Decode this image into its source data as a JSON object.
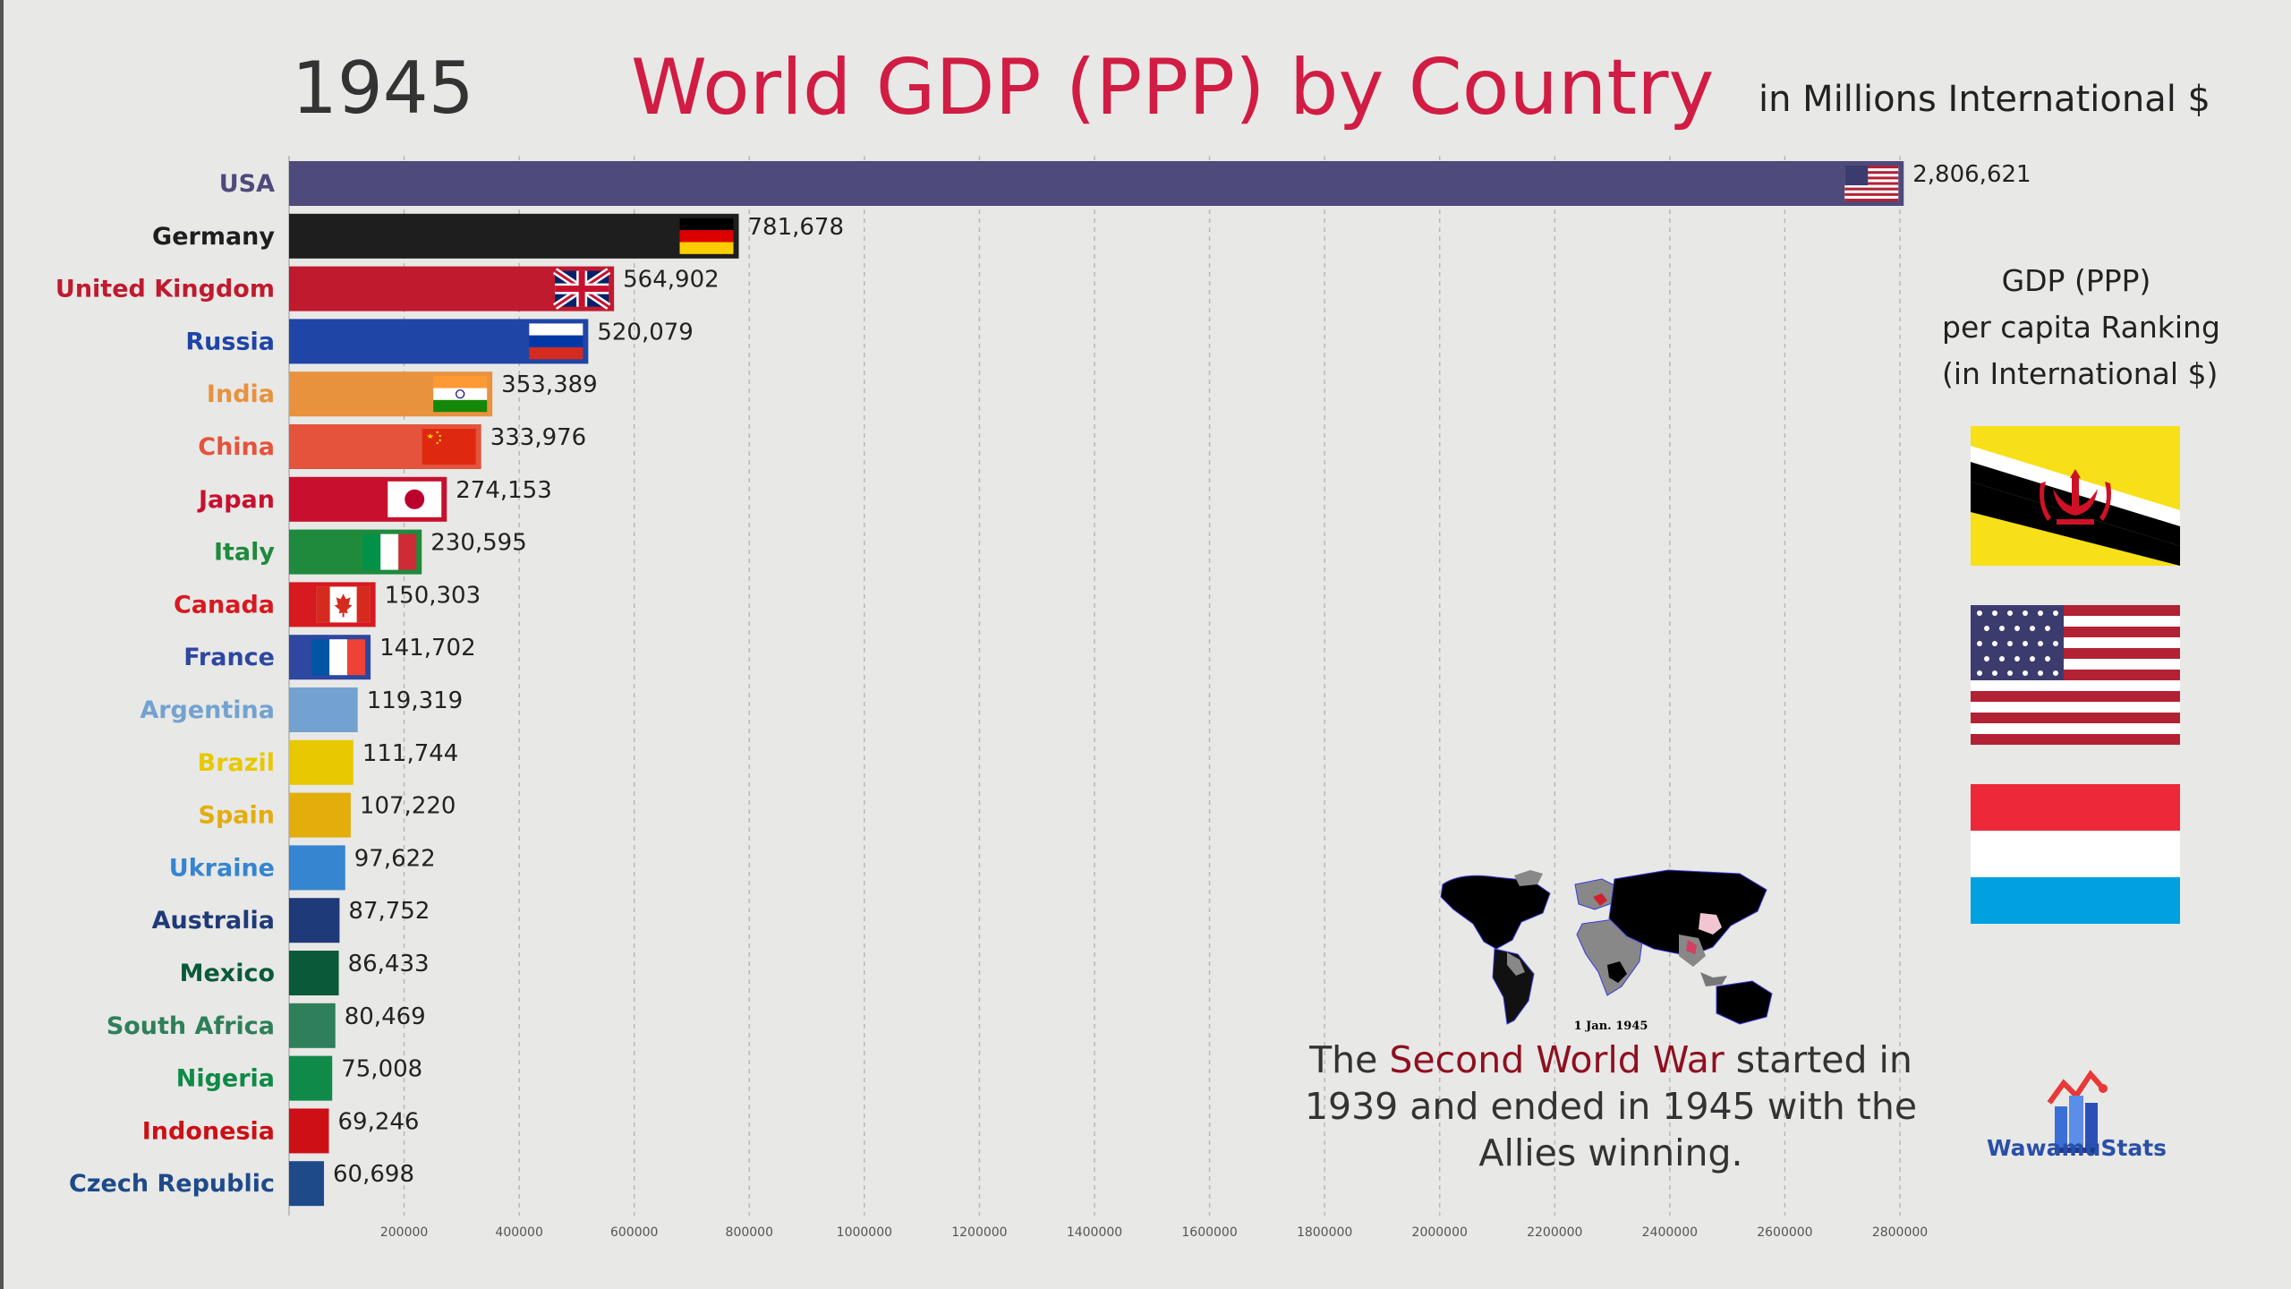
{
  "header": {
    "year": "1945",
    "title": "World GDP (PPP) by Country",
    "unit": "in Millions International $"
  },
  "chart_data": {
    "type": "bar",
    "title": "World GDP (PPP) by Country",
    "orientation": "horizontal",
    "categories": [
      "USA",
      "Germany",
      "United Kingdom",
      "Russia",
      "India",
      "China",
      "Japan",
      "Italy",
      "Canada",
      "France",
      "Argentina",
      "Brazil",
      "Spain",
      "Ukraine",
      "Australia",
      "Mexico",
      "South Africa",
      "Nigeria",
      "Indonesia",
      "Czech Republic"
    ],
    "values": [
      2806621,
      781678,
      564902,
      520079,
      353389,
      333976,
      274153,
      230595,
      150303,
      141702,
      119319,
      111744,
      107220,
      97622,
      87752,
      86433,
      80469,
      75008,
      69246,
      60698
    ],
    "value_labels": [
      "2,806,621",
      "781,678",
      "564,902",
      "520,079",
      "353,389",
      "333,976",
      "274,153",
      "230,595",
      "150,303",
      "141,702",
      "119,319",
      "111,744",
      "107,220",
      "97,622",
      "87,752",
      "86,433",
      "80,469",
      "75,008",
      "69,246",
      "60,698"
    ],
    "colors": [
      "#4e4a7c",
      "#1e1e1e",
      "#c01a2e",
      "#1f45a6",
      "#e8923e",
      "#e5533c",
      "#c8102e",
      "#1f8a3c",
      "#d71920",
      "#2e47a0",
      "#74a2d0",
      "#e8c800",
      "#e3ad0c",
      "#3585d0",
      "#1f3a78",
      "#0a5a3a",
      "#2e7f5a",
      "#0f8a48",
      "#cc1016",
      "#1e4a8a"
    ],
    "flags": [
      "usa",
      "germany",
      "uk",
      "russia",
      "india",
      "china",
      "japan",
      "italy",
      "canada",
      "france",
      "",
      "",
      "",
      "",
      "",
      "",
      "",
      "",
      "",
      ""
    ],
    "xticks": [
      200000,
      400000,
      600000,
      800000,
      1000000,
      1200000,
      1400000,
      1600000,
      1800000,
      2000000,
      2200000,
      2400000,
      2600000,
      2800000
    ],
    "xtick_labels": [
      "200000",
      "400000",
      "600000",
      "800000",
      "1000000",
      "1200000",
      "1400000",
      "1600000",
      "1800000",
      "2000000",
      "2200000",
      "2400000",
      "2600000",
      "2800000"
    ],
    "xlim": [
      0,
      2800000
    ],
    "grid": "vertical dashed"
  },
  "side_panel": {
    "title_lines": [
      "GDP (PPP)",
      "per capita Ranking",
      "(in International $)"
    ],
    "flags": [
      "brunei-flag",
      "usa-flag",
      "luxembourg-flag"
    ]
  },
  "map": {
    "caption": "1 Jan. 1945"
  },
  "fact": {
    "part1": "The ",
    "highlight": "Second World War",
    "part2": " started in 1939 and ended in 1945 with the Allies winning."
  },
  "logo": {
    "text": "WawamuStats"
  }
}
